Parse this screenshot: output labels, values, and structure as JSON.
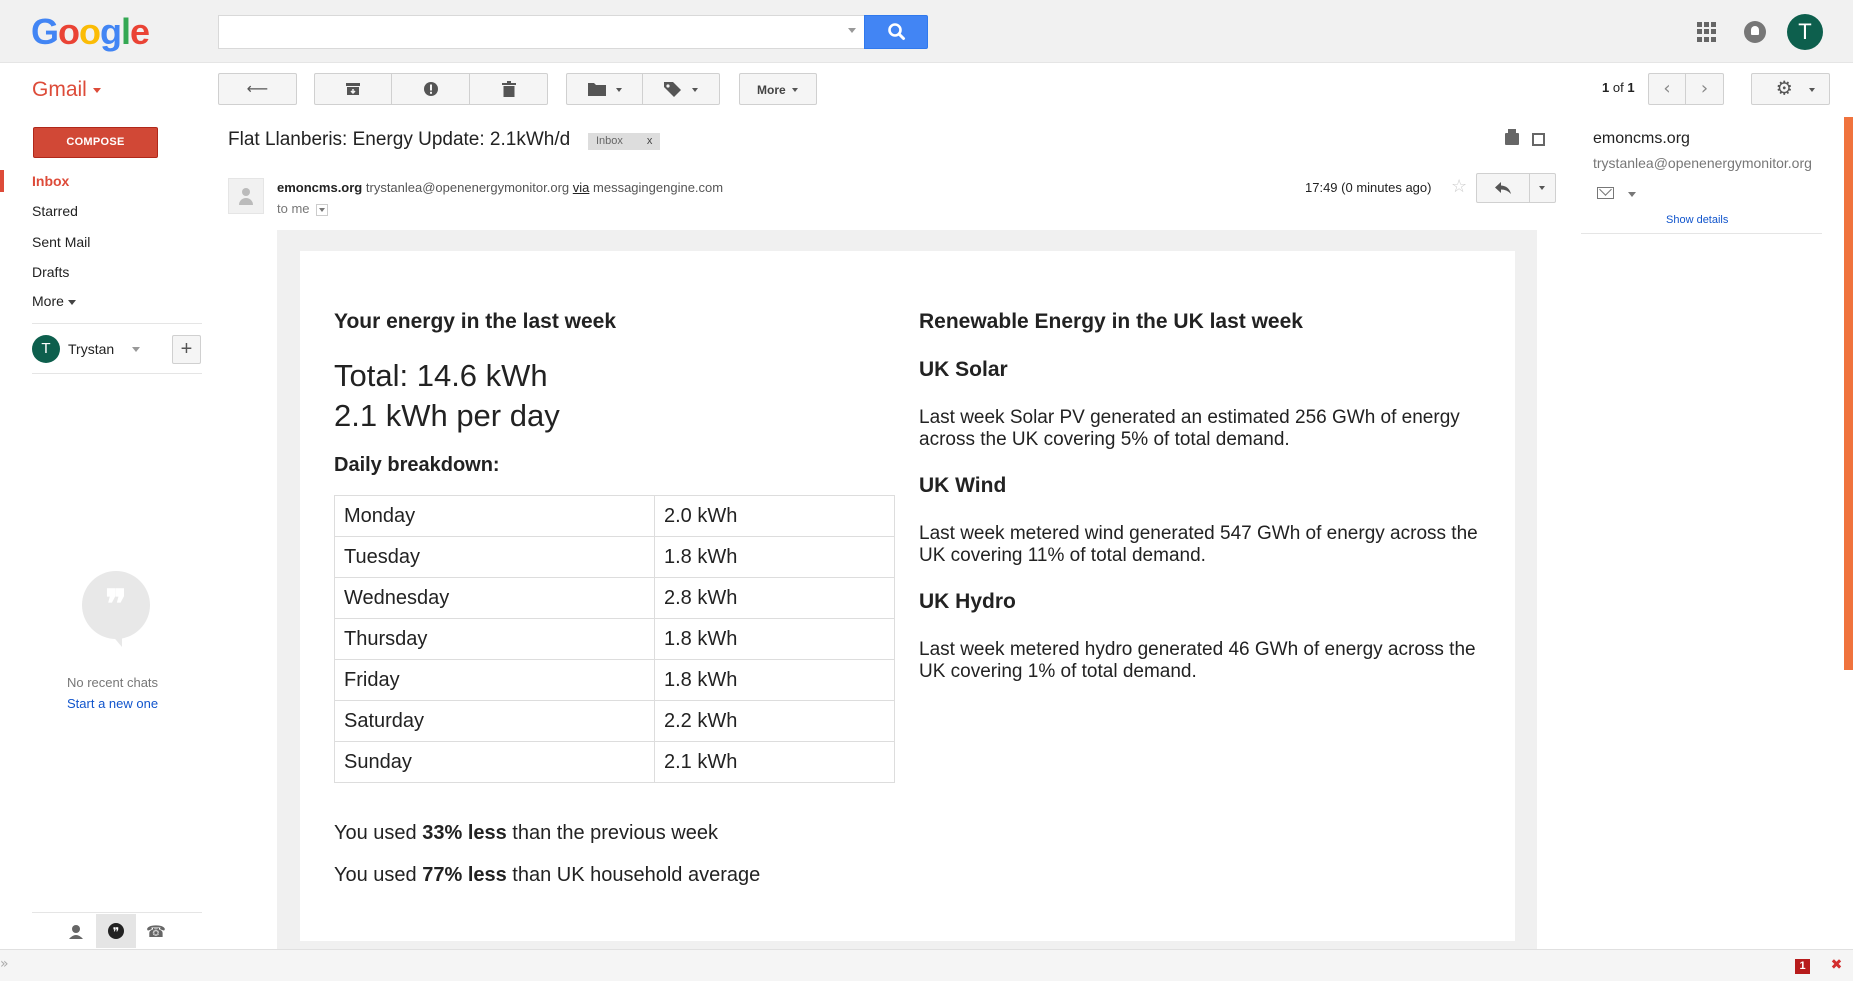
{
  "header": {
    "logo_text": "Google",
    "logo_colors": [
      "#4285f4",
      "#ea4335",
      "#fbbc05",
      "#4285f4",
      "#34a853",
      "#ea4335"
    ],
    "search_value": "",
    "user_initial": "T"
  },
  "toolbar": {
    "gmail_label": "Gmail",
    "more_label": "More",
    "pager_current": "1",
    "pager_of": "of",
    "pager_total": "1"
  },
  "sidebar": {
    "compose_label": "COMPOSE",
    "items": [
      {
        "label": "Inbox",
        "active": true
      },
      {
        "label": "Starred",
        "active": false
      },
      {
        "label": "Sent Mail",
        "active": false
      },
      {
        "label": "Drafts",
        "active": false
      },
      {
        "label": "More",
        "active": false
      }
    ],
    "hangouts_user_initial": "T",
    "hangouts_user_name": "Trystan",
    "no_recent_chats": "No recent chats",
    "start_new": "Start a new one"
  },
  "email": {
    "subject": "Flat Llanberis: Energy Update: 2.1kWh/d",
    "label_chip": "Inbox",
    "label_chip_close": "x",
    "sender_name": "emoncms.org",
    "sender_email": "trystanlea@openenergymonitor.org",
    "via_word": "via",
    "via_domain": "messagingengine.com",
    "to_line": "to me",
    "time": "17:49 (0 minutes ago)"
  },
  "body": {
    "left_heading": "Your energy in the last week",
    "total": "Total: 14.6 kWh",
    "per_day": "2.1 kWh per day",
    "breakdown_heading": "Daily breakdown:",
    "daily": [
      {
        "day": "Monday",
        "value": "2.0 kWh"
      },
      {
        "day": "Tuesday",
        "value": "1.8 kWh"
      },
      {
        "day": "Wednesday",
        "value": "2.8 kWh"
      },
      {
        "day": "Thursday",
        "value": "1.8 kWh"
      },
      {
        "day": "Friday",
        "value": "1.8 kWh"
      },
      {
        "day": "Saturday",
        "value": "2.2 kWh"
      },
      {
        "day": "Sunday",
        "value": "2.1 kWh"
      }
    ],
    "compare_prev_prefix": "You used ",
    "compare_prev_bold": "33% less",
    "compare_prev_suffix": " than the previous week",
    "compare_avg_prefix": "You used ",
    "compare_avg_bold": "77% less",
    "compare_avg_suffix": " than UK household average",
    "right_heading": "Renewable Energy in the UK last week",
    "solar_heading": "UK Solar",
    "solar_text": "Last week Solar PV generated an estimated 256 GWh of energy across the UK covering 5% of total demand.",
    "wind_heading": "UK Wind",
    "wind_text": "Last week metered wind generated 547 GWh of energy across the UK covering 11% of total demand.",
    "hydro_heading": "UK Hydro",
    "hydro_text": "Last week metered hydro generated 46 GWh of energy across the UK covering 1% of total demand."
  },
  "contact": {
    "name": "emoncms.org",
    "email": "trystanlea@openenergymonitor.org",
    "show_details": "Show details"
  },
  "statusbar": {
    "left_glyph": "»",
    "badge_count": "1",
    "close_glyph": "✖"
  },
  "colors": {
    "accent_red": "#dd4b39",
    "compose_red": "#d14836",
    "search_blue": "#4285f4",
    "link_blue": "#1155cc",
    "avatar_green": "#0d5f4d"
  }
}
